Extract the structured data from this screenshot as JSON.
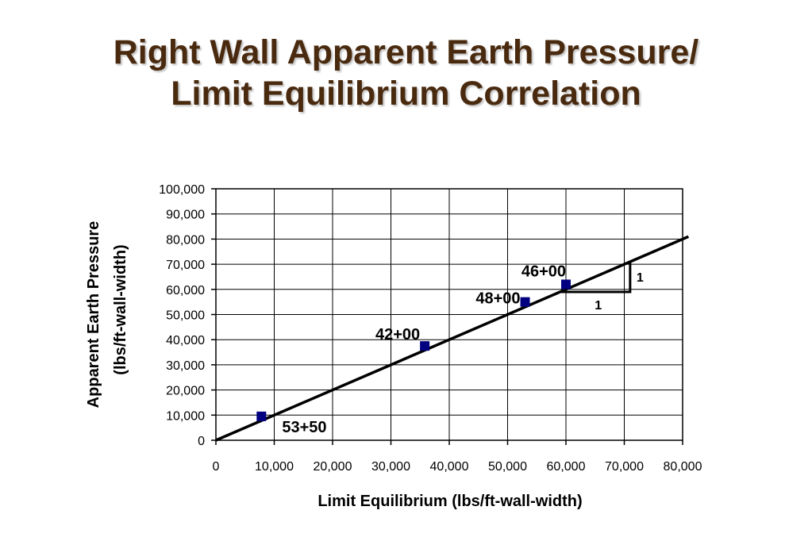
{
  "slide": {
    "title_line1": "Right Wall Apparent Earth Pressure/",
    "title_line2": "Limit Equilibrium Correlation"
  },
  "chart_data": {
    "type": "scatter",
    "title": "",
    "xlabel": "Limit Equilibrium (lbs/ft-wall-width)",
    "ylabel_line1": "Apparent Earth Pressure",
    "ylabel_line2": "(lbs/ft-wall-width)",
    "xlim": [
      0,
      80000
    ],
    "ylim": [
      0,
      100000
    ],
    "x_ticks": [
      "0",
      "10,000",
      "20,000",
      "30,000",
      "40,000",
      "50,000",
      "60,000",
      "70,000",
      "80,000"
    ],
    "y_ticks": [
      "0",
      "10,000",
      "20,000",
      "30,000",
      "40,000",
      "50,000",
      "60,000",
      "70,000",
      "80,000",
      "90,000",
      "100,000"
    ],
    "grid": true,
    "marker_color": "#000080",
    "points": [
      {
        "label": "53+50",
        "x": 7800,
        "y": 9500
      },
      {
        "label": "42+00",
        "x": 35800,
        "y": 37500
      },
      {
        "label": "48+00",
        "x": 53000,
        "y": 55000
      },
      {
        "label": "46+00",
        "x": 60000,
        "y": 62000
      }
    ],
    "trendline": {
      "slope": 1,
      "x_start": 0,
      "x_end": 81000
    },
    "slope_triangle": {
      "x0": 59000,
      "x1": 71000,
      "rise_label": "1",
      "run_label": "1"
    }
  }
}
